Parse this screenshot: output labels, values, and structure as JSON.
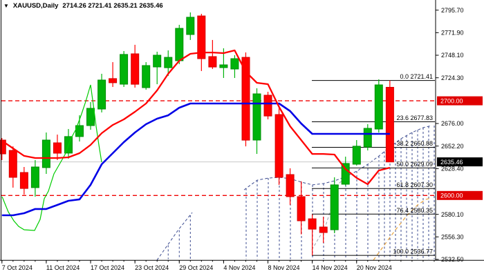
{
  "title": {
    "symbol_period": "XAUUSD,Daily",
    "ohlc": "2714.26 2721.41 2635.21 2635.46"
  },
  "colors": {
    "background": "#ffffff",
    "border": "#000000",
    "candle_up": "#00b30a",
    "candle_up_edge": "#008f08",
    "candle_down": "#ff0000",
    "candle_down_edge": "#d60000",
    "tenkan_red": "#ff0000",
    "kijun_blue": "#0000e6",
    "chikou_green": "#00cc00",
    "cloud_navy": "#3a4a8f",
    "cloud_gray": "#9aa0a8",
    "senkou_orange": "#e8a33d",
    "hline_red": "#f00000",
    "current_line_gray": "#c8c8c8",
    "badge_red": "#e00000",
    "badge_black": "#000000",
    "badge_text": "#ffffff",
    "fib_line": "#000000",
    "axis_text": "#000000"
  },
  "chart_data": {
    "type": "candlestick",
    "symbol": "XAUUSD",
    "timeframe": "Daily",
    "title_ohlc": {
      "open": "2714.26",
      "high": "2721.41",
      "low": "2635.21",
      "close": "2635.46"
    },
    "ylim": [
      2532.5,
      2795.7
    ],
    "grid": false,
    "y_axis": {
      "ticks": [
        {
          "price": 2795.7,
          "label": "2795.70"
        },
        {
          "price": 2771.9,
          "label": "2771.90"
        },
        {
          "price": 2748.1,
          "label": "2748.10"
        },
        {
          "price": 2724.3,
          "label": "2724.30"
        },
        {
          "price": 2676.0,
          "label": "2676.00"
        },
        {
          "price": 2652.2,
          "label": "2652.20"
        },
        {
          "price": 2628.4,
          "label": "2628.40"
        },
        {
          "price": 2580.1,
          "label": "2580.10"
        },
        {
          "price": 2556.3,
          "label": "2556.30"
        },
        {
          "price": 2532.5,
          "label": "2532.50"
        }
      ],
      "badges": [
        {
          "price": 2700.0,
          "label": "2700.00",
          "bg": "#e00000"
        },
        {
          "price": 2635.46,
          "label": "2635.46",
          "bg": "#000000"
        },
        {
          "price": 2600.0,
          "label": "2600.00",
          "bg": "#e00000"
        }
      ]
    },
    "x_axis": {
      "labels": [
        {
          "bar": 0,
          "label": "7 Oct 2024"
        },
        {
          "bar": 4,
          "label": "11 Oct 2024"
        },
        {
          "bar": 8,
          "label": "17 Oct 2024"
        },
        {
          "bar": 12,
          "label": "23 Oct 2024"
        },
        {
          "bar": 16,
          "label": "29 Oct 2024"
        },
        {
          "bar": 20,
          "label": "4 Nov 2024"
        },
        {
          "bar": 24,
          "label": "8 Nov 2024"
        },
        {
          "bar": 28,
          "label": "14 Nov 2024"
        },
        {
          "bar": 32,
          "label": "20 Nov 2024"
        }
      ]
    },
    "candles_ohlc": [
      [
        2658.5,
        2660.7,
        2637.4,
        2643.9
      ],
      [
        2647.6,
        2651.9,
        2608.3,
        2619.2
      ],
      [
        2624.3,
        2630.1,
        2601.0,
        2607.5
      ],
      [
        2608.3,
        2637.4,
        2598.8,
        2630.1
      ],
      [
        2629.4,
        2666.5,
        2622.8,
        2658.5
      ],
      [
        2655.6,
        2664.3,
        2637.4,
        2644.7
      ],
      [
        2644.7,
        2670.2,
        2638.9,
        2662.2
      ],
      [
        2662.2,
        2684.7,
        2657.0,
        2673.8
      ],
      [
        2673.8,
        2698.6,
        2669.4,
        2692.0
      ],
      [
        2691.3,
        2728.5,
        2687.7,
        2721.9
      ],
      [
        2723.4,
        2740.8,
        2714.6,
        2719.0
      ],
      [
        2717.5,
        2752.5,
        2714.6,
        2748.9
      ],
      [
        2749.6,
        2759.1,
        2713.9,
        2717.5
      ],
      [
        2713.9,
        2740.8,
        2711.7,
        2737.2
      ],
      [
        2735.7,
        2751.8,
        2717.5,
        2748.1
      ],
      [
        2735.0,
        2753.2,
        2726.3,
        2745.9
      ],
      [
        2742.3,
        2780.2,
        2738.7,
        2776.5
      ],
      [
        2770.0,
        2793.3,
        2764.2,
        2788.2
      ],
      [
        2789.6,
        2791.8,
        2731.4,
        2744.5
      ],
      [
        2746.7,
        2764.2,
        2733.6,
        2735.7
      ],
      [
        2735.0,
        2755.4,
        2724.1,
        2737.9
      ],
      [
        2733.6,
        2748.1,
        2724.1,
        2744.5
      ],
      [
        2745.9,
        2751.0,
        2651.9,
        2658.5
      ],
      [
        2658.5,
        2713.2,
        2643.9,
        2707.3
      ],
      [
        2705.9,
        2709.5,
        2680.4,
        2684.0
      ],
      [
        2685.5,
        2694.9,
        2611.2,
        2619.2
      ],
      [
        2622.1,
        2628.7,
        2590.0,
        2598.8
      ],
      [
        2598.8,
        2615.0,
        2559.0,
        2573.3
      ],
      [
        2575.4,
        2580.0,
        2536.8,
        2564.5
      ],
      [
        2566.7,
        2577.6,
        2549.9,
        2560.9
      ],
      [
        2563.8,
        2619.2,
        2560.2,
        2611.2
      ],
      [
        2611.9,
        2641.0,
        2610.4,
        2633.8
      ],
      [
        2633.0,
        2658.5,
        2631.6,
        2652.0
      ],
      [
        2651.2,
        2675.3,
        2647.6,
        2670.9
      ],
      [
        2670.2,
        2722.6,
        2666.5,
        2716.8
      ],
      [
        2714.26,
        2721.41,
        2635.21,
        2635.46
      ]
    ],
    "overlays": {
      "tenkan_per_bar": [
        2657.8,
        2649.8,
        2641.8,
        2639.6,
        2639.6,
        2639.6,
        2640.3,
        2644.7,
        2653.4,
        2665.8,
        2674.5,
        2680.4,
        2688.4,
        2697.1,
        2711.0,
        2728.5,
        2742.3,
        2749.6,
        2751.0,
        2751.0,
        2750.3,
        2753.2,
        2730.6,
        2719.0,
        2717.5,
        2693.5,
        2673.1,
        2658.5,
        2643.9,
        2643.9,
        2643.2,
        2627.9,
        2618.5,
        2611.9,
        2626.4,
        2629.4
      ],
      "kijun_per_bar": [
        2579.1,
        2579.1,
        2581.3,
        2585.7,
        2585.7,
        2590.0,
        2594.4,
        2595.9,
        2611.2,
        2633.0,
        2644.7,
        2656.3,
        2666.5,
        2675.3,
        2681.1,
        2684.7,
        2692.7,
        2697.1,
        2697.1,
        2697.1,
        2697.1,
        2697.1,
        2697.1,
        2697.1,
        2697.1,
        2697.1,
        2689.1,
        2676.0,
        2665.1,
        2665.1,
        2665.1,
        2665.1,
        2665.1,
        2665.1,
        2665.1,
        2665.1
      ],
      "chikou_xp": [
        [
          3,
          2598.8
        ],
        [
          12,
          2582.7
        ],
        [
          20,
          2573.3
        ],
        [
          27,
          2567.4
        ],
        [
          35,
          2563.8
        ],
        [
          50,
          2563.1
        ],
        [
          58,
          2574.7
        ],
        [
          64,
          2596.6
        ],
        [
          70,
          2604.6
        ],
        [
          78,
          2622.8
        ],
        [
          86,
          2633.0
        ],
        [
          94,
          2643.2
        ],
        [
          102,
          2659.2
        ],
        [
          110,
          2670.2
        ],
        [
          118,
          2686.2
        ],
        [
          124,
          2699.3
        ],
        [
          131,
          2716.8
        ],
        [
          135,
          2695.7
        ],
        [
          139,
          2673.1
        ],
        [
          143,
          2653.4
        ],
        [
          147,
          2635.2
        ]
      ],
      "senkou_b_xp": [
        [
          353,
          2606.0
        ],
        [
          372,
          2616.2
        ],
        [
          388,
          2618.4
        ],
        [
          404,
          2619.2
        ],
        [
          420,
          2617.7
        ],
        [
          436,
          2614.1
        ],
        [
          452,
          2611.2
        ],
        [
          468,
          2612.6
        ],
        [
          484,
          2615.5
        ],
        [
          500,
          2619.9
        ],
        [
          516,
          2625.7
        ],
        [
          532,
          2633.0
        ],
        [
          548,
          2641.7
        ],
        [
          564,
          2651.2
        ],
        [
          580,
          2660.0
        ],
        [
          596,
          2666.5
        ],
        [
          612,
          2671.6
        ],
        [
          624,
          2673.8
        ]
      ],
      "senkou_a_past_xp": [
        [
          227,
          2531.7
        ],
        [
          258,
          2563.8
        ],
        [
          278,
          2582.0
        ]
      ],
      "senkou_a_mid_xp": [
        [
          451,
          2542.7
        ],
        [
          470,
          2566.0
        ],
        [
          491,
          2613.4
        ],
        [
          500,
          2618.4
        ]
      ],
      "senkou_a_future_xp": [
        [
          540,
          2531.7
        ],
        [
          556,
          2547.8
        ],
        [
          572,
          2563.8
        ],
        [
          588,
          2578.4
        ],
        [
          604,
          2590.0
        ],
        [
          616,
          2595.9
        ],
        [
          624,
          2597.3
        ]
      ]
    },
    "hlines": [
      {
        "price": 2635.46,
        "style": "solid",
        "color": "#c8c8c8"
      },
      {
        "price": 2700.0,
        "style": "dashed",
        "color": "#f00000"
      },
      {
        "price": 2600.0,
        "style": "dashed",
        "color": "#f00000"
      }
    ],
    "fibonacci": {
      "levels": [
        {
          "pct": "0.0",
          "price": 2721.41
        },
        {
          "pct": "23.6",
          "price": 2677.83
        },
        {
          "pct": "38.2",
          "price": 2650.88
        },
        {
          "pct": "50.0",
          "price": 2629.09
        },
        {
          "pct": "61.8",
          "price": 2607.3
        },
        {
          "pct": "76.4",
          "price": 2580.35
        },
        {
          "pct": "100.0",
          "price": 2536.77
        }
      ]
    }
  }
}
